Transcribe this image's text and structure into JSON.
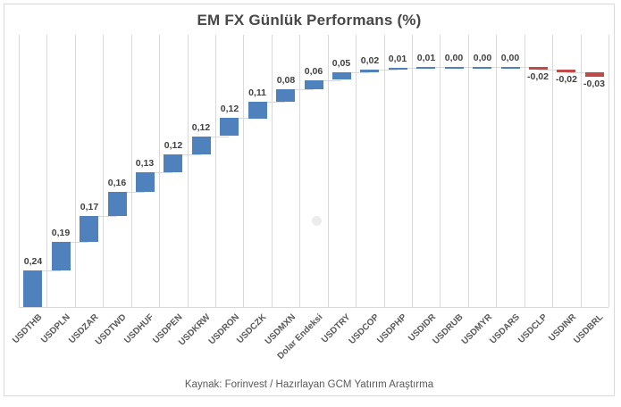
{
  "chart_data": {
    "type": "bar",
    "subtype": "waterfall",
    "title": "EM FX Günlük Performans (%)",
    "xlabel": "",
    "ylabel": "",
    "legend": "none",
    "grid": "vertical-category-gridlines",
    "ylim": [
      0,
      1.8
    ],
    "categories": [
      "USDTHB",
      "USDPLN",
      "USDZAR",
      "USDTWD",
      "USDHUF",
      "USDPEN",
      "USDKRW",
      "USDRON",
      "USDCZK",
      "USDMXN",
      "Dolar Endeksi",
      "USDTRY",
      "USDCOP",
      "USDPHP",
      "USDIDR",
      "USDRUB",
      "USDMYR",
      "USDARS",
      "USDCLP",
      "USDINR",
      "USDBRL"
    ],
    "values": [
      0.24,
      0.19,
      0.17,
      0.16,
      0.13,
      0.12,
      0.12,
      0.12,
      0.11,
      0.08,
      0.06,
      0.05,
      0.02,
      0.01,
      0.01,
      0.0,
      0.0,
      0.0,
      -0.02,
      -0.02,
      -0.03
    ],
    "value_labels": [
      "0,24",
      "0,19",
      "0,17",
      "0,16",
      "0,13",
      "0,12",
      "0,12",
      "0,12",
      "0,11",
      "0,08",
      "0,06",
      "0,05",
      "0,02",
      "0,01",
      "0,01",
      "0,00",
      "0,00",
      "0,00",
      "-0,02",
      "-0,02",
      "-0,03"
    ],
    "colors": {
      "positive_bar": "#4F81BD",
      "negative_bar": "#BE4B48",
      "gridline": "#D9D9D9",
      "connector": "#D9D9D9",
      "border": "#D9D9D9",
      "title_text": "#474747",
      "value_label_text": "#404040",
      "category_label_text": "#595959",
      "footer_text": "#595959"
    }
  },
  "footer": {
    "source_note": "Kaynak: Forinvest / Hazırlayan GCM Yatırım Araştırma"
  }
}
